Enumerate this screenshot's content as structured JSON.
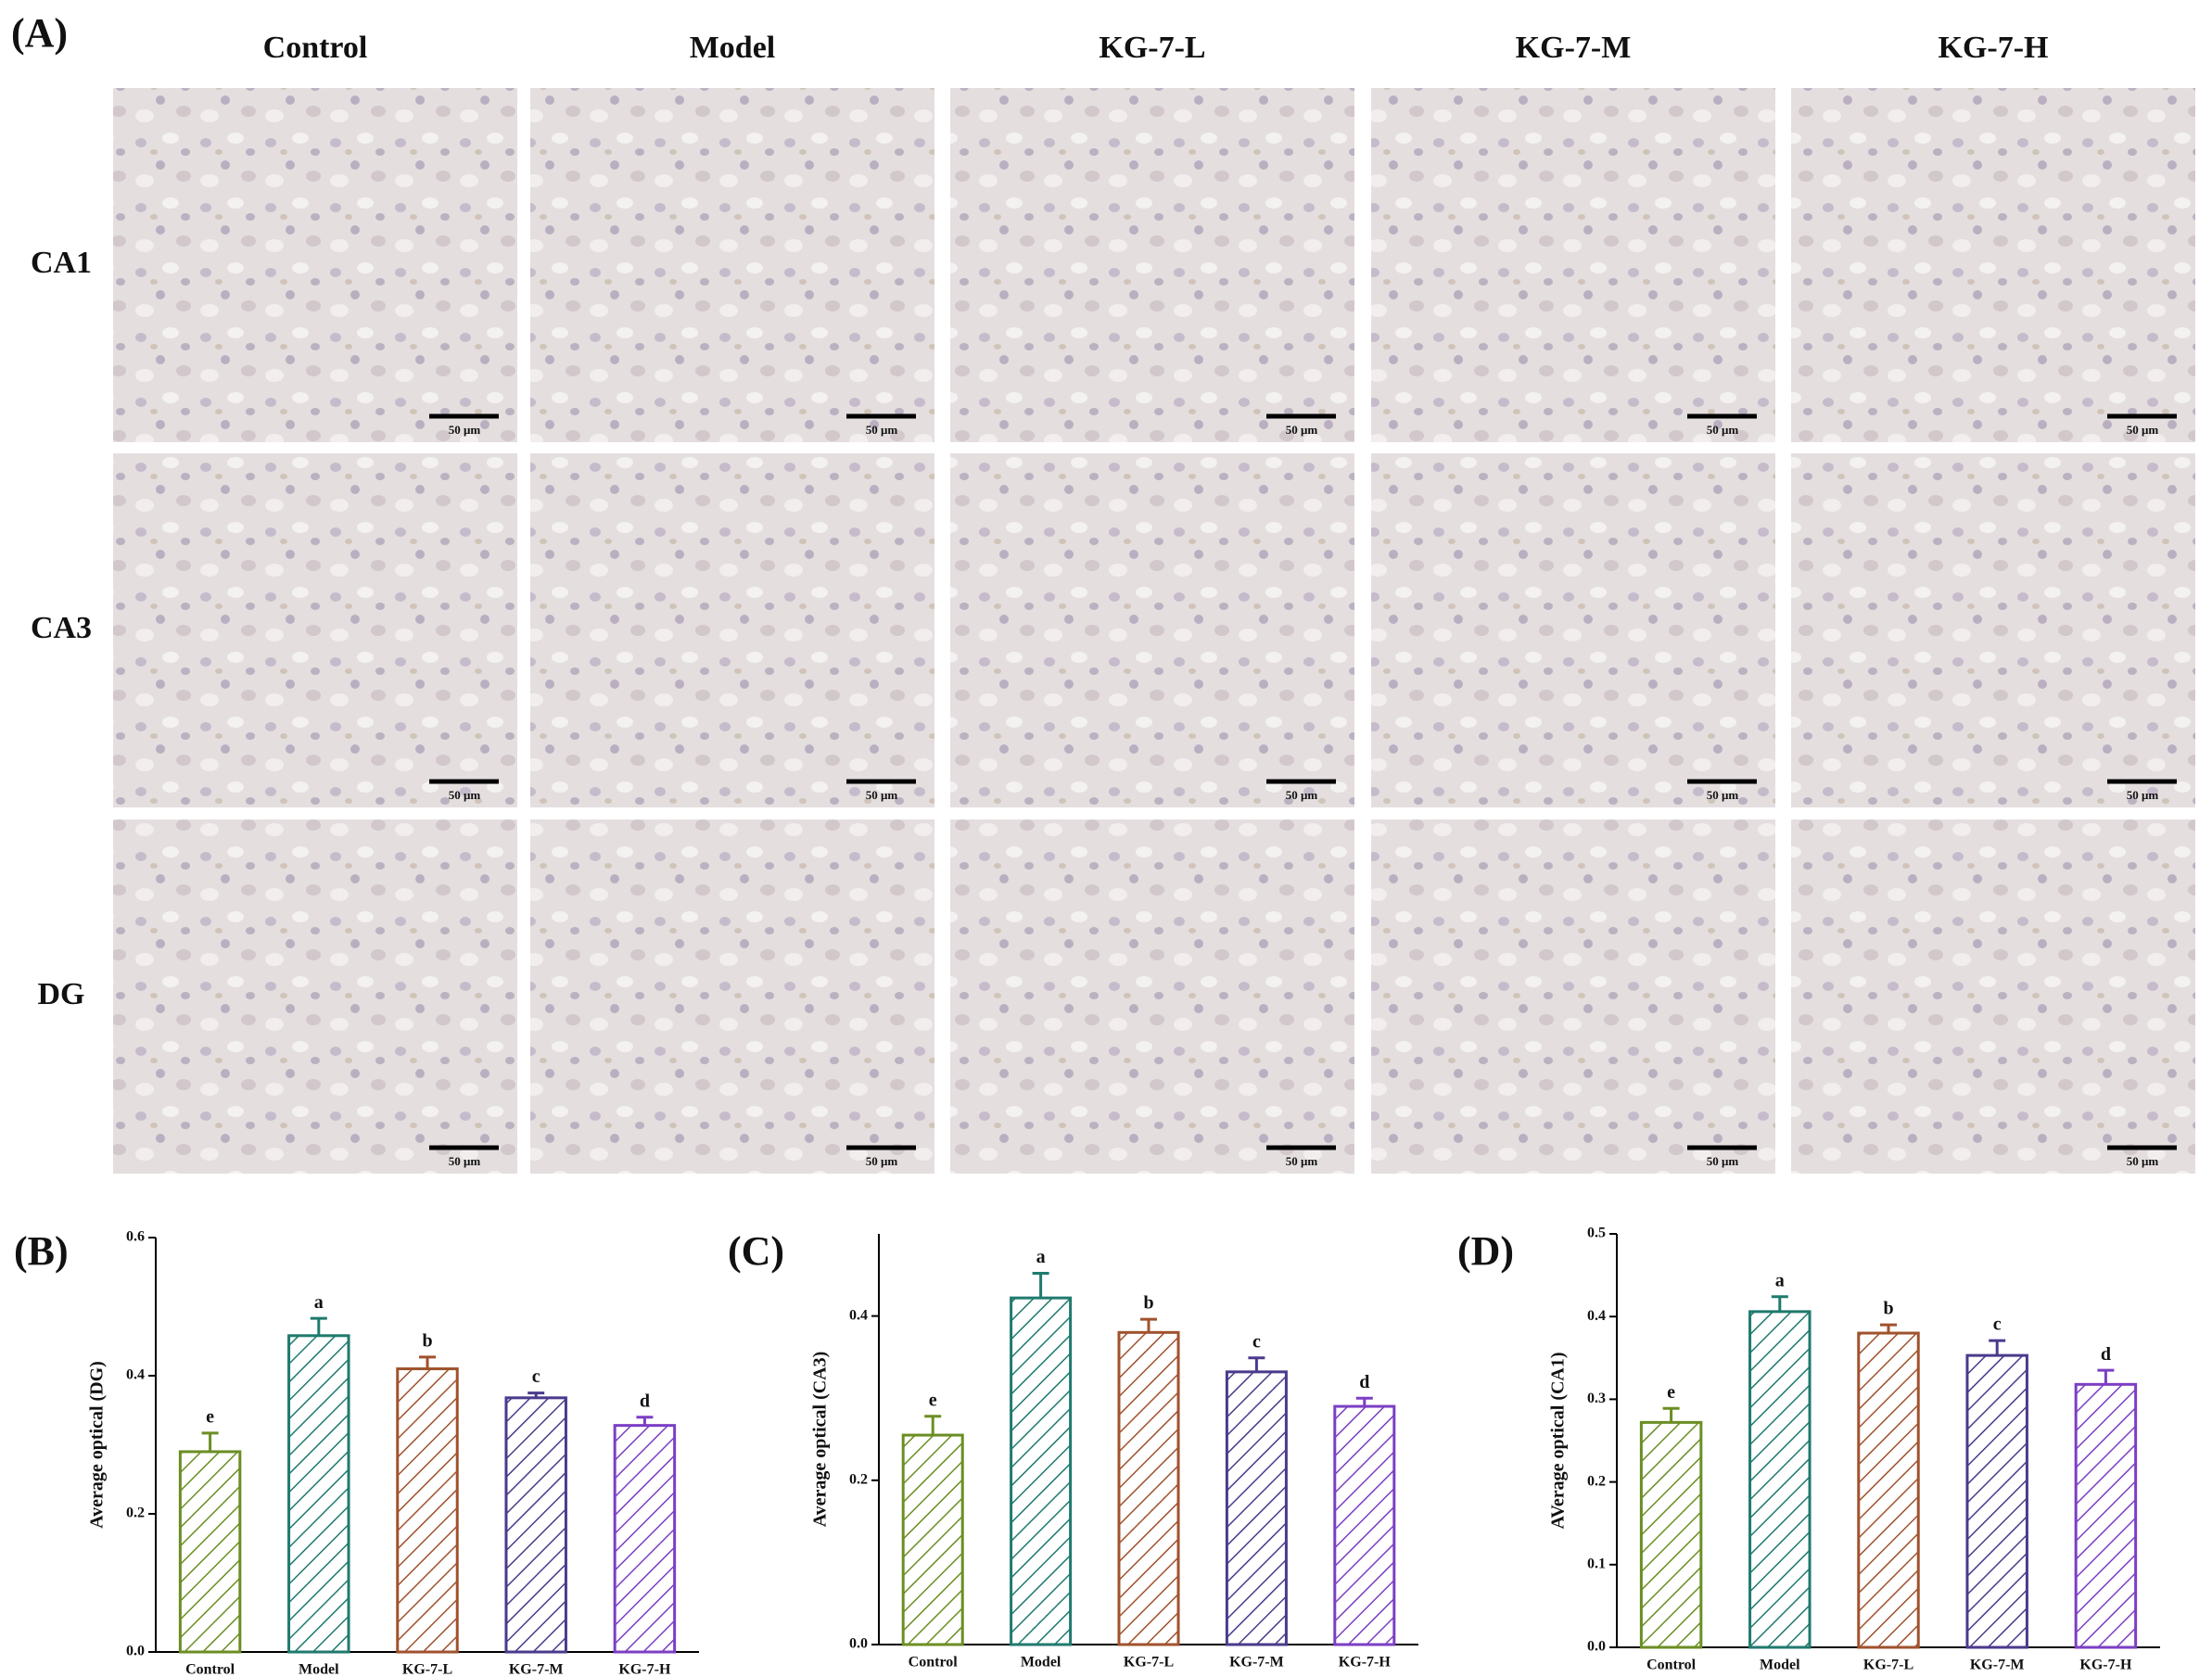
{
  "panel_a": {
    "label": "(A)",
    "columns": [
      "Control",
      "Model",
      "KG-7-L",
      "KG-7-M",
      "KG-7-H"
    ],
    "rows": [
      "CA1",
      "CA3",
      "DG"
    ],
    "scale_bar": "50 μm"
  },
  "chart_data": [
    {
      "type": "bar",
      "panel_label": "(B)",
      "y_label": "Average optical (DG)",
      "categories": [
        "Control",
        "Model",
        "KG-7-L",
        "KG-7-M",
        "KG-7-H"
      ],
      "values": [
        0.29,
        0.458,
        0.41,
        0.368,
        0.328
      ],
      "errors": [
        0.027,
        0.025,
        0.017,
        0.007,
        0.012
      ],
      "annotations": [
        "e",
        "a",
        "b",
        "c",
        "d"
      ],
      "colors": [
        "#6b8e23",
        "#1f7a6e",
        "#a0522d",
        "#4b3a8c",
        "#7b3fc4"
      ],
      "ylim": [
        0,
        0.6
      ],
      "yticks": [
        {
          "value": 0,
          "label": "0.0"
        },
        0.2,
        0.4,
        0.6
      ]
    },
    {
      "type": "bar",
      "panel_label": "(C)",
      "y_label": "Average optical (CA3)",
      "categories": [
        "Control",
        "Model",
        "KG-7-L",
        "KG-7-M",
        "KG-7-H"
      ],
      "values": [
        0.255,
        0.422,
        0.38,
        0.332,
        0.29
      ],
      "errors": [
        0.023,
        0.03,
        0.016,
        0.017,
        0.01
      ],
      "annotations": [
        "e",
        "a",
        "b",
        "c",
        "d"
      ],
      "colors": [
        "#6b8e23",
        "#1f7a6e",
        "#a0522d",
        "#4b3a8c",
        "#7b3fc4"
      ],
      "ylim": [
        0,
        0.5
      ],
      "yticks": [
        {
          "value": 0,
          "label": "0.0"
        },
        0.2,
        0.4
      ]
    },
    {
      "type": "bar",
      "panel_label": "(D)",
      "y_label": "AVerage optical (CA1)",
      "categories": [
        "Control",
        "Model",
        "KG-7-L",
        "KG-7-M",
        "KG-7-H"
      ],
      "values": [
        0.272,
        0.406,
        0.38,
        0.353,
        0.318
      ],
      "errors": [
        0.017,
        0.018,
        0.01,
        0.018,
        0.017
      ],
      "annotations": [
        "e",
        "a",
        "b",
        "c",
        "d"
      ],
      "colors": [
        "#6b8e23",
        "#1f7a6e",
        "#a0522d",
        "#4b3a8c",
        "#7b3fc4"
      ],
      "ylim": [
        0,
        0.5
      ],
      "yticks": [
        {
          "value": 0,
          "label": "0.0"
        },
        0.1,
        0.2,
        0.3,
        0.4,
        0.5
      ]
    }
  ]
}
